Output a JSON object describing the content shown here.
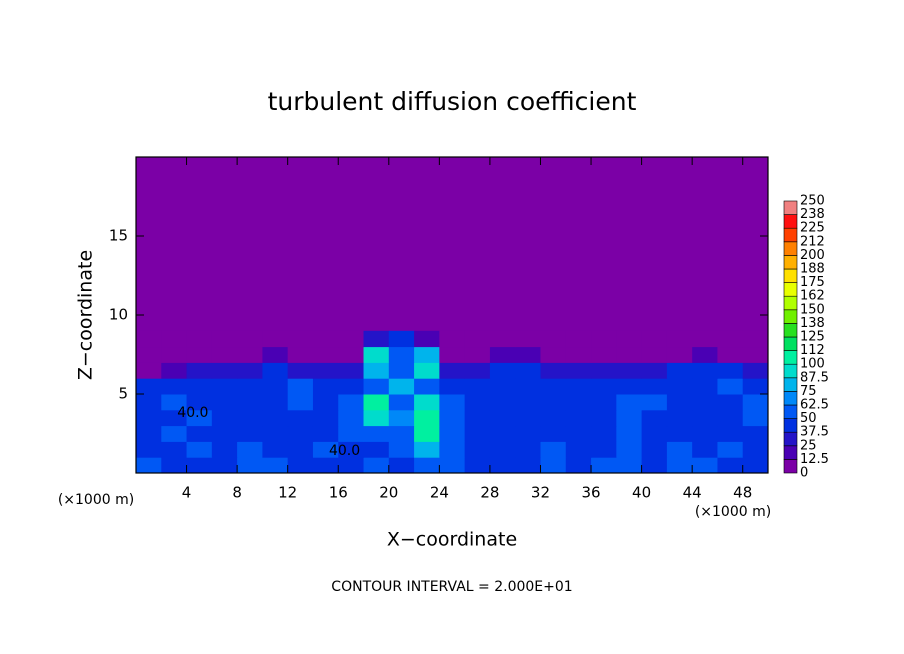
{
  "chart_data": {
    "type": "heatmap",
    "title": "turbulent diffusion coefficient",
    "x_label": "X−coordinate",
    "y_label": "Z−coordinate",
    "x_unit": "(×1000 m)",
    "y_unit": "(×1000 m)",
    "footer": "CONTOUR INTERVAL = 2.000E+01",
    "xlim": [
      0,
      50
    ],
    "ylim": [
      0,
      20
    ],
    "xticks": [
      4,
      8,
      12,
      16,
      20,
      24,
      28,
      32,
      36,
      40,
      44,
      48
    ],
    "yticks": [
      5,
      10,
      15
    ],
    "x": [
      1,
      3,
      5,
      7,
      9,
      11,
      13,
      15,
      17,
      19,
      21,
      23,
      25,
      27,
      29,
      31,
      33,
      35,
      37,
      39,
      41,
      43,
      45,
      47,
      49
    ],
    "y": [
      0.5,
      1.5,
      2.5,
      3.5,
      4.5,
      5.5,
      6.5,
      7.5,
      8.5
    ],
    "z": [
      [
        50,
        45,
        40,
        40,
        50,
        55,
        40,
        45,
        40,
        50,
        45,
        60,
        50,
        40,
        40,
        45,
        50,
        45,
        50,
        55,
        45,
        60,
        50,
        45,
        45
      ],
      [
        45,
        40,
        50,
        45,
        50,
        40,
        45,
        50,
        45,
        40,
        50,
        75,
        55,
        45,
        40,
        45,
        50,
        45,
        40,
        50,
        45,
        55,
        45,
        50,
        45
      ],
      [
        45,
        50,
        45,
        40,
        45,
        45,
        40,
        45,
        55,
        50,
        60,
        100,
        50,
        40,
        40,
        45,
        45,
        40,
        45,
        50,
        40,
        45,
        45,
        40,
        45
      ],
      [
        40,
        45,
        50,
        45,
        45,
        40,
        45,
        40,
        62,
        88,
        70,
        112,
        55,
        40,
        45,
        40,
        40,
        45,
        40,
        50,
        45,
        40,
        45,
        45,
        50
      ],
      [
        45,
        50,
        40,
        40,
        45,
        45,
        50,
        45,
        50,
        112,
        62,
        88,
        50,
        40,
        45,
        40,
        45,
        40,
        40,
        55,
        50,
        45,
        40,
        45,
        50
      ],
      [
        40,
        45,
        40,
        40,
        45,
        45,
        55,
        45,
        40,
        62,
        75,
        62,
        40,
        45,
        45,
        40,
        40,
        45,
        40,
        45,
        40,
        45,
        45,
        50,
        40
      ],
      [
        0,
        12.5,
        25,
        25,
        30,
        40,
        25,
        30,
        30,
        75,
        50,
        88,
        25,
        30,
        40,
        40,
        30,
        25,
        25,
        25,
        30,
        40,
        45,
        40,
        25
      ],
      [
        0,
        0,
        0,
        0,
        0,
        12.5,
        0,
        0,
        0,
        88,
        62,
        75,
        0,
        0,
        12.5,
        12.5,
        0,
        0,
        0,
        0,
        0,
        0,
        12.5,
        0,
        0
      ],
      [
        0,
        0,
        0,
        0,
        0,
        0,
        0,
        0,
        0,
        25,
        40,
        12.5,
        0,
        0,
        0,
        0,
        0,
        0,
        0,
        0,
        0,
        0,
        0,
        0,
        0
      ]
    ],
    "colorbar": {
      "levels": [
        0,
        12.5,
        25,
        37.5,
        50,
        62.5,
        75,
        87.5,
        100,
        {
          "value": 112.5,
          "label": "112"
        },
        125,
        {
          "value": 137.5,
          "label": "138"
        },
        150,
        {
          "value": 162.5,
          "label": "162"
        },
        175,
        {
          "value": 187.5,
          "label": "188"
        },
        200,
        {
          "value": 212.5,
          "label": "212"
        },
        225,
        {
          "value": 237.5,
          "label": "238"
        },
        250
      ],
      "colors": [
        "#7b00a6",
        "#4a00b4",
        "#2414c8",
        "#0030e0",
        "#0058f4",
        "#0088f8",
        "#00b4ec",
        "#00dccc",
        "#00f0a0",
        "#00e060",
        "#28e020",
        "#70f000",
        "#b0ff00",
        "#e8ff00",
        "#ffe000",
        "#ffb000",
        "#ff8000",
        "#ff4000",
        "#ff1010",
        "#f08080"
      ]
    },
    "annotations": [
      {
        "text": "40.0",
        "x": 4.5,
        "y": 3.8
      },
      {
        "text": "40.0",
        "x": 16.5,
        "y": 1.4
      }
    ]
  }
}
